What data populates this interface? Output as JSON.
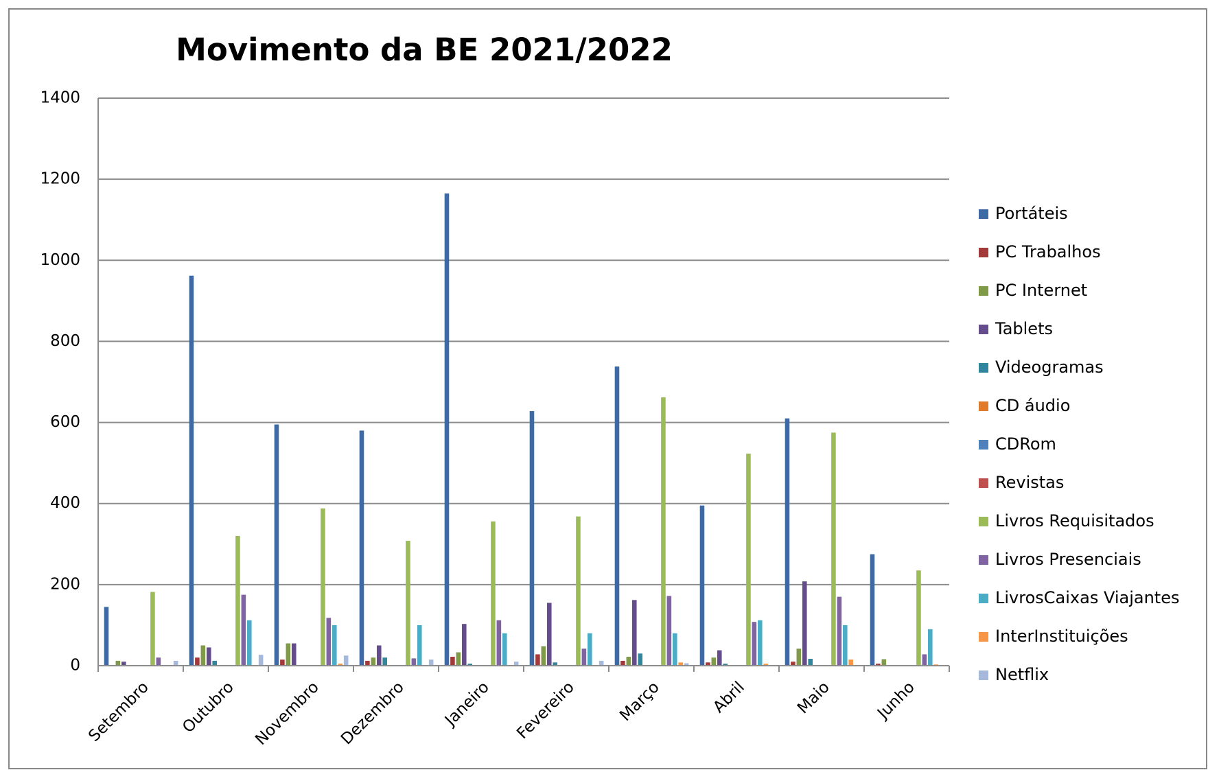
{
  "chart_data": {
    "type": "bar",
    "title": "Movimento da BE 2021/2022",
    "categories": [
      "Setembro",
      "Outubro",
      "Novembro",
      "Dezembro",
      "Janeiro",
      "Fevereiro",
      "Março",
      "Abril",
      "Maio",
      "Junho"
    ],
    "series": [
      {
        "name": "Portáteis",
        "color": "#3d6aa5",
        "values": [
          145,
          962,
          595,
          580,
          1165,
          628,
          738,
          395,
          610,
          275
        ]
      },
      {
        "name": "PC Trabalhos",
        "color": "#a33a39",
        "values": [
          0,
          20,
          15,
          12,
          22,
          28,
          12,
          8,
          10,
          5
        ]
      },
      {
        "name": "PC Internet",
        "color": "#7f9a48",
        "values": [
          12,
          50,
          55,
          20,
          33,
          48,
          22,
          20,
          42,
          16
        ]
      },
      {
        "name": "Tablets",
        "color": "#644d8a",
        "values": [
          10,
          45,
          55,
          50,
          103,
          155,
          162,
          38,
          208,
          0
        ]
      },
      {
        "name": "Videogramas",
        "color": "#31859c",
        "values": [
          0,
          12,
          0,
          20,
          5,
          8,
          30,
          5,
          17,
          0
        ]
      },
      {
        "name": "CD áudio",
        "color": "#e07b2b",
        "values": [
          0,
          0,
          0,
          0,
          0,
          0,
          0,
          0,
          0,
          0
        ]
      },
      {
        "name": "CDRom",
        "color": "#4f81bd",
        "values": [
          0,
          0,
          0,
          0,
          0,
          0,
          0,
          0,
          0,
          0
        ]
      },
      {
        "name": "Revistas",
        "color": "#c0504d",
        "values": [
          0,
          0,
          0,
          0,
          0,
          0,
          0,
          0,
          0,
          0
        ]
      },
      {
        "name": "Livros Requisitados",
        "color": "#9bbb59",
        "values": [
          182,
          320,
          388,
          308,
          356,
          368,
          662,
          523,
          575,
          235
        ]
      },
      {
        "name": "Livros Presenciais",
        "color": "#8064a2",
        "values": [
          20,
          175,
          118,
          18,
          112,
          42,
          172,
          108,
          170,
          28
        ]
      },
      {
        "name": "LivrosCaixas Viajantes",
        "color": "#4bacc6",
        "values": [
          0,
          112,
          100,
          100,
          80,
          80,
          80,
          112,
          100,
          90
        ]
      },
      {
        "name": "InterInstituições",
        "color": "#f79646",
        "values": [
          0,
          0,
          5,
          0,
          0,
          0,
          8,
          5,
          15,
          3
        ]
      },
      {
        "name": "Netflix",
        "color": "#a5b9dc",
        "values": [
          12,
          27,
          25,
          15,
          10,
          12,
          6,
          0,
          0,
          0
        ]
      }
    ],
    "ylim": [
      0,
      1400
    ],
    "yticks": [
      0,
      200,
      400,
      600,
      800,
      1000,
      1200,
      1400
    ],
    "grid": true,
    "legend": "right"
  }
}
